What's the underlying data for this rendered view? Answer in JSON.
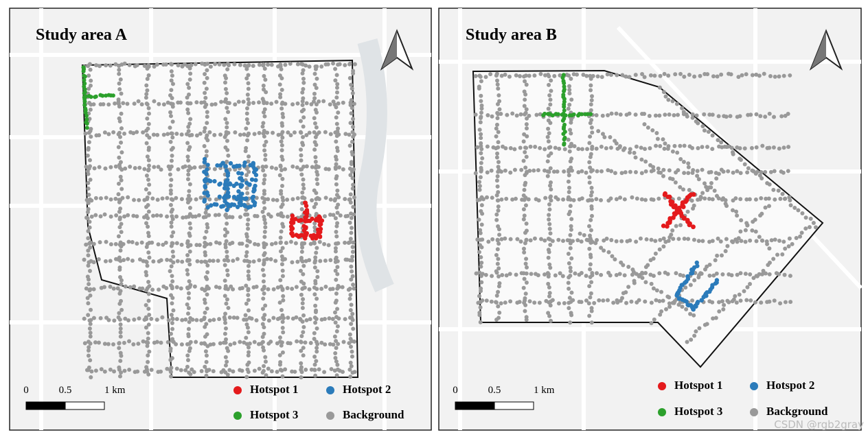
{
  "panels": [
    {
      "title": "Study area A",
      "scale_bar": {
        "labels": [
          "0",
          "0.5",
          "1 km"
        ]
      },
      "legend": [
        {
          "label": "Hotspot 1",
          "color": "#e41a1c"
        },
        {
          "label": "Hotspot 2",
          "color": "#2b7bba"
        },
        {
          "label": "Hotspot 3",
          "color": "#2ca02c"
        },
        {
          "label": "Background",
          "color": "#999999"
        }
      ]
    },
    {
      "title": "Study area B",
      "scale_bar": {
        "labels": [
          "0",
          "0.5",
          "1 km"
        ]
      },
      "legend": [
        {
          "label": "Hotspot 1",
          "color": "#e41a1c"
        },
        {
          "label": "Hotspot 2",
          "color": "#2b7bba"
        },
        {
          "label": "Hotspot 3",
          "color": "#2ca02c"
        },
        {
          "label": "Background",
          "color": "#999999"
        }
      ]
    }
  ],
  "watermark": "CSDN @rgb2gray"
}
